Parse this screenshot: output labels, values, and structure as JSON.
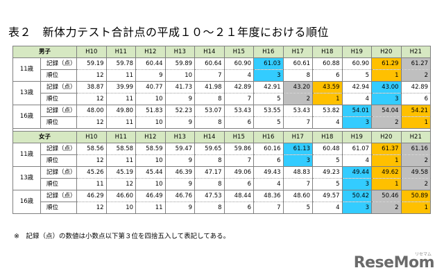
{
  "title": "表２　新体力テスト合計点の平成１０～２１年度における順位",
  "years": [
    "H10",
    "H11",
    "H12",
    "H13",
    "H14",
    "H15",
    "H16",
    "H17",
    "H18",
    "H19",
    "H20",
    "H21"
  ],
  "colors": {
    "cyan": "#33ccff",
    "orange": "#ffc000",
    "gray": "#bfbfbf",
    "header_bg": "#d6e8c2"
  },
  "groups": [
    {
      "name": "男子",
      "ages": [
        {
          "age": "11歳",
          "record_label": "記録（点）",
          "rank_label": "順位",
          "records": [
            "59.19",
            "59.78",
            "60.44",
            "59.89",
            "60.64",
            "60.90",
            "61.03",
            "60.61",
            "60.88",
            "60.90",
            "61.29",
            "61.27"
          ],
          "ranks": [
            "12",
            "11",
            "9",
            "10",
            "7",
            "4",
            "3",
            "8",
            "6",
            "5",
            "1",
            "2"
          ],
          "highlight": [
            "",
            "",
            "",
            "",
            "",
            "",
            "cyan",
            "",
            "",
            "",
            "orange",
            "gray"
          ]
        },
        {
          "age": "13歳",
          "record_label": "記録（点）",
          "rank_label": "順位",
          "records": [
            "38.87",
            "39.99",
            "40.77",
            "41.73",
            "41.98",
            "42.89",
            "42.91",
            "43.20",
            "43.59",
            "42.94",
            "43.00",
            "42.89"
          ],
          "ranks": [
            "12",
            "11",
            "10",
            "9",
            "8",
            "7",
            "5",
            "2",
            "1",
            "4",
            "3",
            "6"
          ],
          "highlight": [
            "",
            "",
            "",
            "",
            "",
            "",
            "",
            "gray",
            "orange",
            "",
            "cyan",
            ""
          ]
        },
        {
          "age": "16歳",
          "record_label": "記録（点）",
          "rank_label": "順位",
          "records": [
            "48.00",
            "49.80",
            "51.83",
            "52.23",
            "53.07",
            "53.43",
            "53.55",
            "53.43",
            "53.82",
            "54.01",
            "54.04",
            "54.21"
          ],
          "ranks": [
            "12",
            "11",
            "10",
            "9",
            "8",
            "6",
            "5",
            "7",
            "4",
            "3",
            "2",
            "1"
          ],
          "highlight": [
            "",
            "",
            "",
            "",
            "",
            "",
            "",
            "",
            "",
            "cyan",
            "gray",
            "orange"
          ]
        }
      ]
    },
    {
      "name": "女子",
      "ages": [
        {
          "age": "11歳",
          "record_label": "記録（点）",
          "rank_label": "順位",
          "records": [
            "58.56",
            "58.58",
            "58.59",
            "59.47",
            "59.65",
            "59.86",
            "60.16",
            "61.13",
            "60.48",
            "61.07",
            "61.37",
            "61.16"
          ],
          "ranks": [
            "12",
            "11",
            "10",
            "9",
            "8",
            "7",
            "6",
            "3",
            "5",
            "4",
            "1",
            "2"
          ],
          "highlight": [
            "",
            "",
            "",
            "",
            "",
            "",
            "",
            "cyan",
            "",
            "",
            "orange",
            "gray"
          ]
        },
        {
          "age": "13歳",
          "record_label": "記録（点）",
          "rank_label": "順位",
          "records": [
            "45.26",
            "45.19",
            "45.44",
            "46.39",
            "47.17",
            "49.06",
            "49.43",
            "48.83",
            "49.23",
            "49.44",
            "49.62",
            "49.58"
          ],
          "ranks": [
            "11",
            "12",
            "10",
            "9",
            "8",
            "6",
            "4",
            "7",
            "5",
            "3",
            "1",
            "2"
          ],
          "highlight": [
            "",
            "",
            "",
            "",
            "",
            "",
            "",
            "",
            "",
            "cyan",
            "orange",
            "gray"
          ]
        },
        {
          "age": "16歳",
          "record_label": "記録（点）",
          "rank_label": "順位",
          "records": [
            "46.29",
            "46.60",
            "46.49",
            "46.76",
            "47.53",
            "48.44",
            "48.36",
            "48.60",
            "49.57",
            "50.42",
            "50.46",
            "50.89"
          ],
          "ranks": [
            "12",
            "10",
            "11",
            "9",
            "8",
            "6",
            "7",
            "5",
            "4",
            "3",
            "2",
            "1"
          ],
          "highlight": [
            "",
            "",
            "",
            "",
            "",
            "",
            "",
            "",
            "",
            "cyan",
            "gray",
            "orange"
          ]
        }
      ]
    }
  ],
  "note": "※　記録（点）の数値は小数点以下第３位を四捨五入して表記してある。",
  "logo": {
    "text": "ReseMom",
    "sub": "リセマム"
  }
}
